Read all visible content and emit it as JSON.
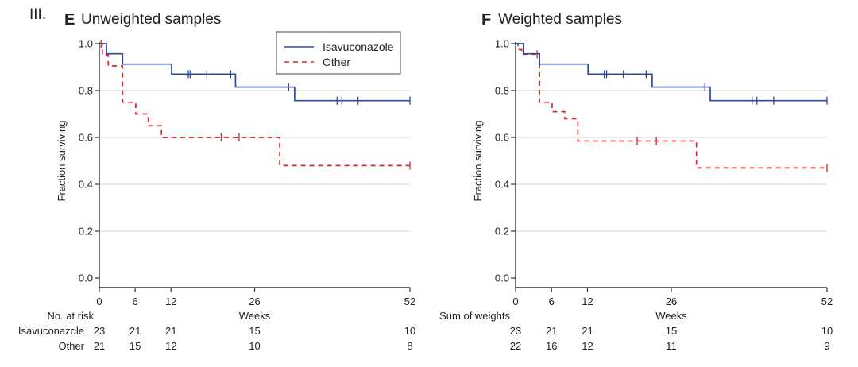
{
  "figure_label": "III.",
  "colors": {
    "isavuconazole": "#2f4a9c",
    "other": "#d8262c",
    "grid": "#cfcfcf",
    "axis": "#333333"
  },
  "chart_data": [
    {
      "type": "line",
      "subtype": "kaplan-meier",
      "panel": "E",
      "title": "Unweighted samples",
      "xlabel": "Weeks",
      "ylabel": "Fraction surviving",
      "xlim": [
        0,
        52
      ],
      "ylim": [
        0,
        1
      ],
      "xticks": [
        0,
        6,
        12,
        26,
        52
      ],
      "yticks": [
        0.0,
        0.2,
        0.4,
        0.6,
        0.8,
        1.0
      ],
      "ytick_labels": [
        "0.0",
        "0.2",
        "0.4",
        "0.6",
        "0.8",
        "1.0"
      ],
      "grid": "horizontal",
      "legend": {
        "position": "top-right",
        "entries": [
          "Isavuconazole",
          "Other"
        ]
      },
      "series": [
        {
          "name": "Isavuconazole",
          "style": "solid",
          "steps": [
            [
              0,
              1.0
            ],
            [
              1.2,
              0.957
            ],
            [
              3.9,
              0.913
            ],
            [
              12.1,
              0.87
            ],
            [
              22.8,
              0.815
            ],
            [
              32.7,
              0.757
            ],
            [
              52,
              0.757
            ]
          ],
          "censored": [
            [
              14.9,
              0.87
            ],
            [
              15.2,
              0.87
            ],
            [
              18.0,
              0.87
            ],
            [
              22.0,
              0.87
            ],
            [
              31.7,
              0.815
            ],
            [
              39.8,
              0.757
            ],
            [
              40.6,
              0.757
            ],
            [
              43.3,
              0.757
            ],
            [
              52,
              0.757
            ]
          ]
        },
        {
          "name": "Other",
          "style": "dashed",
          "steps": [
            [
              0,
              1.0
            ],
            [
              0.5,
              0.952
            ],
            [
              1.5,
              0.905
            ],
            [
              3.9,
              0.75
            ],
            [
              6.1,
              0.7
            ],
            [
              8.2,
              0.65
            ],
            [
              10.4,
              0.6
            ],
            [
              30.2,
              0.48
            ],
            [
              52,
              0.48
            ]
          ],
          "censored": [
            [
              0.3,
              1.0
            ],
            [
              20.4,
              0.6
            ],
            [
              23.4,
              0.6
            ],
            [
              52,
              0.48
            ]
          ]
        }
      ],
      "risk_table": {
        "header": "No. at risk",
        "times": [
          0,
          6,
          12,
          26,
          52
        ],
        "rows": [
          {
            "label": "Isavuconazole",
            "values": [
              "23",
              "21",
              "21",
              "15",
              "10"
            ]
          },
          {
            "label": "Other",
            "values": [
              "21",
              "15",
              "12",
              "10",
              "8"
            ]
          }
        ]
      }
    },
    {
      "type": "line",
      "subtype": "kaplan-meier",
      "panel": "F",
      "title": "Weighted samples",
      "xlabel": "Weeks",
      "ylabel": "Fraction surviving",
      "xlim": [
        0,
        52
      ],
      "ylim": [
        0,
        1
      ],
      "xticks": [
        0,
        6,
        12,
        26,
        52
      ],
      "yticks": [
        0.0,
        0.2,
        0.4,
        0.6,
        0.8,
        1.0
      ],
      "ytick_labels": [
        "0.0",
        "0.2",
        "0.4",
        "0.6",
        "0.8",
        "1.0"
      ],
      "grid": "horizontal",
      "legend": null,
      "series": [
        {
          "name": "Isavuconazole",
          "style": "solid",
          "steps": [
            [
              0,
              1.0
            ],
            [
              1.3,
              0.957
            ],
            [
              4.0,
              0.913
            ],
            [
              12.1,
              0.87
            ],
            [
              22.8,
              0.815
            ],
            [
              32.5,
              0.757
            ],
            [
              52,
              0.757
            ]
          ],
          "censored": [
            [
              14.8,
              0.87
            ],
            [
              15.2,
              0.87
            ],
            [
              18.0,
              0.87
            ],
            [
              21.8,
              0.87
            ],
            [
              31.6,
              0.815
            ],
            [
              39.5,
              0.757
            ],
            [
              40.3,
              0.757
            ],
            [
              43.1,
              0.757
            ],
            [
              52,
              0.757
            ]
          ]
        },
        {
          "name": "Other",
          "style": "dashed",
          "steps": [
            [
              0,
              1.0
            ],
            [
              0.4,
              0.975
            ],
            [
              1.0,
              0.955
            ],
            [
              4.0,
              0.75
            ],
            [
              6.1,
              0.71
            ],
            [
              8.2,
              0.68
            ],
            [
              10.4,
              0.585
            ],
            [
              30.2,
              0.47
            ],
            [
              52,
              0.47
            ]
          ],
          "censored": [
            [
              3.6,
              0.955
            ],
            [
              20.3,
              0.585
            ],
            [
              23.5,
              0.585
            ],
            [
              52,
              0.47
            ]
          ]
        }
      ],
      "risk_table": {
        "header": "Sum of weights",
        "times": [
          0,
          6,
          12,
          26,
          52
        ],
        "rows": [
          {
            "label": "",
            "values": [
              "23",
              "21",
              "21",
              "15",
              "10"
            ]
          },
          {
            "label": "",
            "values": [
              "22",
              "16",
              "12",
              "11",
              "9"
            ]
          }
        ]
      }
    }
  ]
}
